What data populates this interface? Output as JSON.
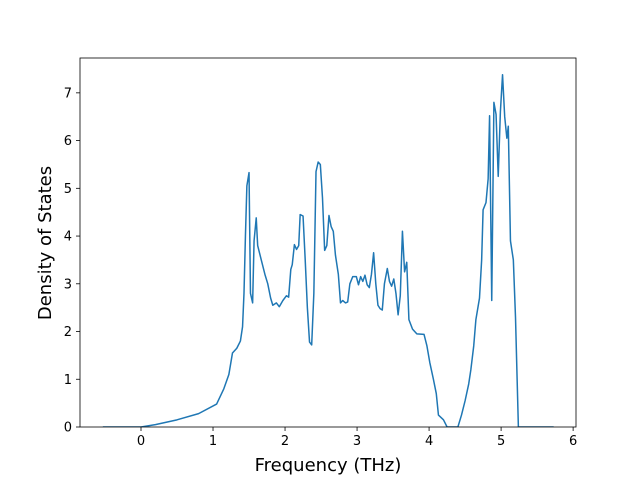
{
  "chart_data": {
    "type": "line",
    "xlabel": "Frequency (THz)",
    "ylabel": "Density of States",
    "xlim": [
      -0.847,
      6.04
    ],
    "ylim": [
      0,
      7.73
    ],
    "xticks": [
      0,
      1,
      2,
      3,
      4,
      5,
      6
    ],
    "yticks": [
      0,
      1,
      2,
      3,
      4,
      5,
      6,
      7
    ],
    "series": [
      {
        "color": "#1f77b4",
        "x": [
          -0.53,
          0,
          0.2,
          0.5,
          0.8,
          1.05,
          1.15,
          1.22,
          1.27,
          1.33,
          1.38,
          1.41,
          1.43,
          1.45,
          1.47,
          1.5,
          1.52,
          1.55,
          1.57,
          1.6,
          1.62,
          1.67,
          1.72,
          1.76,
          1.8,
          1.83,
          1.88,
          1.92,
          1.97,
          2.02,
          2.05,
          2.08,
          2.1,
          2.13,
          2.16,
          2.19,
          2.21,
          2.25,
          2.28,
          2.31,
          2.34,
          2.37,
          2.4,
          2.43,
          2.46,
          2.49,
          2.52,
          2.55,
          2.58,
          2.61,
          2.64,
          2.67,
          2.7,
          2.74,
          2.77,
          2.8,
          2.84,
          2.87,
          2.9,
          2.94,
          2.99,
          3.02,
          3.05,
          3.08,
          3.11,
          3.14,
          3.17,
          3.2,
          3.23,
          3.26,
          3.29,
          3.32,
          3.35,
          3.38,
          3.42,
          3.45,
          3.48,
          3.51,
          3.54,
          3.57,
          3.6,
          3.63,
          3.66,
          3.69,
          3.72,
          3.77,
          3.83,
          3.93,
          3.97,
          4.01,
          4.06,
          4.1,
          4.13,
          4.2,
          4.25,
          4.4,
          4.45,
          4.5,
          4.55,
          4.58,
          4.62,
          4.65,
          4.7,
          4.73,
          4.75,
          4.79,
          4.82,
          4.84,
          4.87,
          4.9,
          4.93,
          4.96,
          4.99,
          5.02,
          5.05,
          5.08,
          5.1,
          5.13,
          5.17,
          5.2,
          5.24,
          5.73
        ],
        "values": [
          0,
          0,
          0.05,
          0.15,
          0.28,
          0.48,
          0.8,
          1.1,
          1.55,
          1.65,
          1.8,
          2.1,
          2.8,
          4.0,
          5.05,
          5.33,
          2.8,
          2.6,
          3.9,
          4.38,
          3.8,
          3.5,
          3.2,
          3.0,
          2.7,
          2.55,
          2.6,
          2.52,
          2.65,
          2.75,
          2.72,
          3.3,
          3.4,
          3.82,
          3.72,
          3.8,
          4.45,
          4.42,
          3.5,
          2.5,
          1.78,
          1.72,
          2.8,
          5.35,
          5.55,
          5.5,
          4.8,
          3.7,
          3.8,
          4.43,
          4.2,
          4.1,
          3.6,
          3.2,
          2.6,
          2.65,
          2.6,
          2.62,
          3.0,
          3.15,
          3.15,
          2.98,
          3.15,
          3.05,
          3.18,
          2.98,
          2.92,
          3.2,
          3.65,
          3.0,
          2.55,
          2.48,
          2.45,
          3.0,
          3.32,
          3.05,
          2.95,
          3.1,
          2.8,
          2.35,
          2.75,
          4.1,
          3.25,
          3.45,
          2.25,
          2.05,
          1.95,
          1.94,
          1.7,
          1.35,
          1.0,
          0.7,
          0.25,
          0.15,
          0,
          0,
          0.25,
          0.55,
          0.9,
          1.2,
          1.7,
          2.25,
          2.7,
          3.5,
          4.55,
          4.7,
          5.2,
          6.52,
          2.65,
          6.8,
          6.55,
          5.25,
          6.6,
          7.38,
          6.5,
          6.05,
          6.3,
          3.9,
          3.5,
          2.3,
          0,
          0
        ]
      }
    ]
  }
}
